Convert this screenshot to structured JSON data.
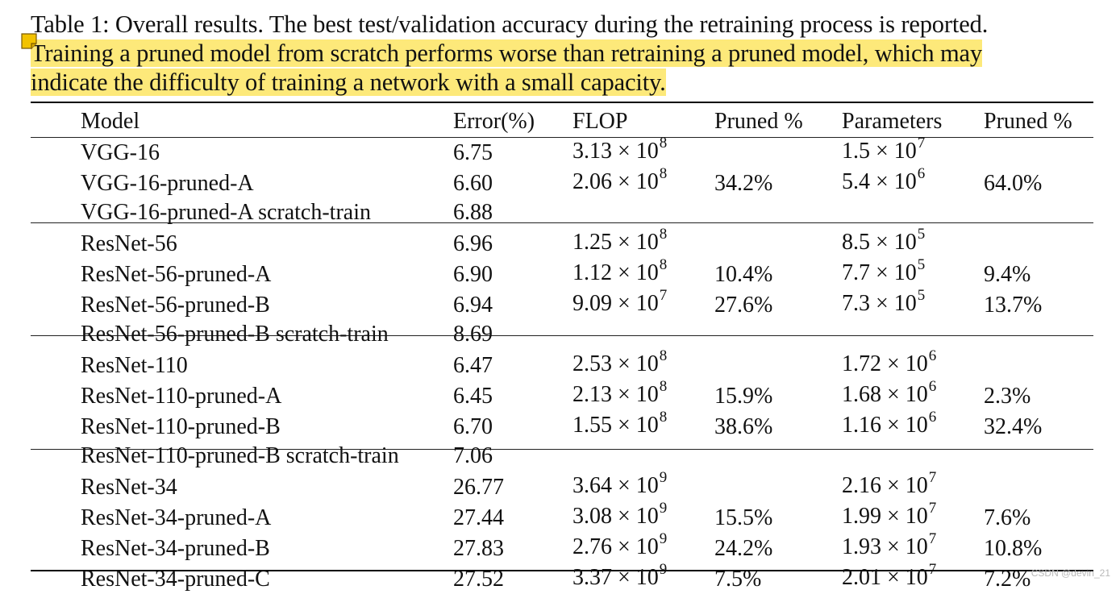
{
  "caption": {
    "line1": "Table 1: Overall results. The best test/validation accuracy during the retraining process is reported.",
    "line2": "Training a pruned model from scratch performs worse than retraining a pruned model, which may",
    "line3": "indicate the difficulty of training a network with a small capacity."
  },
  "headers": [
    "Model",
    "Error(%)",
    "FLOP",
    "Pruned %",
    "Parameters",
    "Pruned %"
  ],
  "groups": [
    [
      {
        "model": "VGG-16",
        "error": "6.75",
        "bold": false,
        "flop_m": "3.13",
        "flop_e": "8",
        "flop_pruned": "",
        "params_m": "1.5",
        "params_e": "7",
        "params_pruned": ""
      },
      {
        "model": "VGG-16-pruned-A",
        "error": "6.60",
        "bold": true,
        "flop_m": "2.06",
        "flop_e": "8",
        "flop_pruned": "34.2%",
        "params_m": "5.4",
        "params_e": "6",
        "params_pruned": "64.0%"
      },
      {
        "model": "VGG-16-pruned-A scratch-train",
        "error": "6.88",
        "bold": false,
        "flop_m": "",
        "flop_e": "",
        "flop_pruned": "",
        "params_m": "",
        "params_e": "",
        "params_pruned": ""
      }
    ],
    [
      {
        "model": "ResNet-56",
        "error": "6.96",
        "bold": false,
        "flop_m": "1.25",
        "flop_e": "8",
        "flop_pruned": "",
        "params_m": "8.5",
        "params_e": "5",
        "params_pruned": ""
      },
      {
        "model": "ResNet-56-pruned-A",
        "error": "6.90",
        "bold": false,
        "flop_m": "1.12",
        "flop_e": "8",
        "flop_pruned": "10.4%",
        "params_m": "7.7",
        "params_e": "5",
        "params_pruned": "9.4%"
      },
      {
        "model": "ResNet-56-pruned-B",
        "error": "6.94",
        "bold": true,
        "flop_m": "9.09",
        "flop_e": "7",
        "flop_pruned": "27.6%",
        "params_m": "7.3",
        "params_e": "5",
        "params_pruned": "13.7%"
      },
      {
        "model": "ResNet-56-pruned-B scratch-train",
        "error": "8.69",
        "bold": false,
        "flop_m": "",
        "flop_e": "",
        "flop_pruned": "",
        "params_m": "",
        "params_e": "",
        "params_pruned": ""
      }
    ],
    [
      {
        "model": "ResNet-110",
        "error": "6.47",
        "bold": false,
        "flop_m": "2.53",
        "flop_e": "8",
        "flop_pruned": "",
        "params_m": "1.72",
        "params_e": "6",
        "params_pruned": ""
      },
      {
        "model": "ResNet-110-pruned-A",
        "error": "6.45",
        "bold": true,
        "flop_m": "2.13",
        "flop_e": "8",
        "flop_pruned": "15.9%",
        "params_m": "1.68",
        "params_e": "6",
        "params_pruned": "2.3%"
      },
      {
        "model": "ResNet-110-pruned-B",
        "error": "6.70",
        "bold": false,
        "flop_m": "1.55",
        "flop_e": "8",
        "flop_pruned": "38.6%",
        "params_m": "1.16",
        "params_e": "6",
        "params_pruned": "32.4%"
      },
      {
        "model": "ResNet-110-pruned-B scratch-train",
        "error": "7.06",
        "bold": false,
        "flop_m": "",
        "flop_e": "",
        "flop_pruned": "",
        "params_m": "",
        "params_e": "",
        "params_pruned": ""
      }
    ],
    [
      {
        "model": "ResNet-34",
        "error": "26.77",
        "bold": false,
        "flop_m": "3.64",
        "flop_e": "9",
        "flop_pruned": "",
        "params_m": "2.16",
        "params_e": "7",
        "params_pruned": ""
      },
      {
        "model": "ResNet-34-pruned-A",
        "error": "27.44",
        "bold": false,
        "flop_m": "3.08",
        "flop_e": "9",
        "flop_pruned": "15.5%",
        "params_m": "1.99",
        "params_e": "7",
        "params_pruned": "7.6%"
      },
      {
        "model": "ResNet-34-pruned-B",
        "error": "27.83",
        "bold": false,
        "flop_m": "2.76",
        "flop_e": "9",
        "flop_pruned": "24.2%",
        "params_m": "1.93",
        "params_e": "7",
        "params_pruned": "10.8%"
      },
      {
        "model": "ResNet-34-pruned-C",
        "error": "27.52",
        "bold": false,
        "flop_m": "3.37",
        "flop_e": "9",
        "flop_pruned": "7.5%",
        "params_m": "2.01",
        "params_e": "7",
        "params_pruned": "7.2%"
      }
    ]
  ],
  "times_symbol": "×",
  "base": "10",
  "watermark": "CSDN @devin_21",
  "colors": {
    "highlight": "#fde97a",
    "note_icon": "#f2c200"
  }
}
